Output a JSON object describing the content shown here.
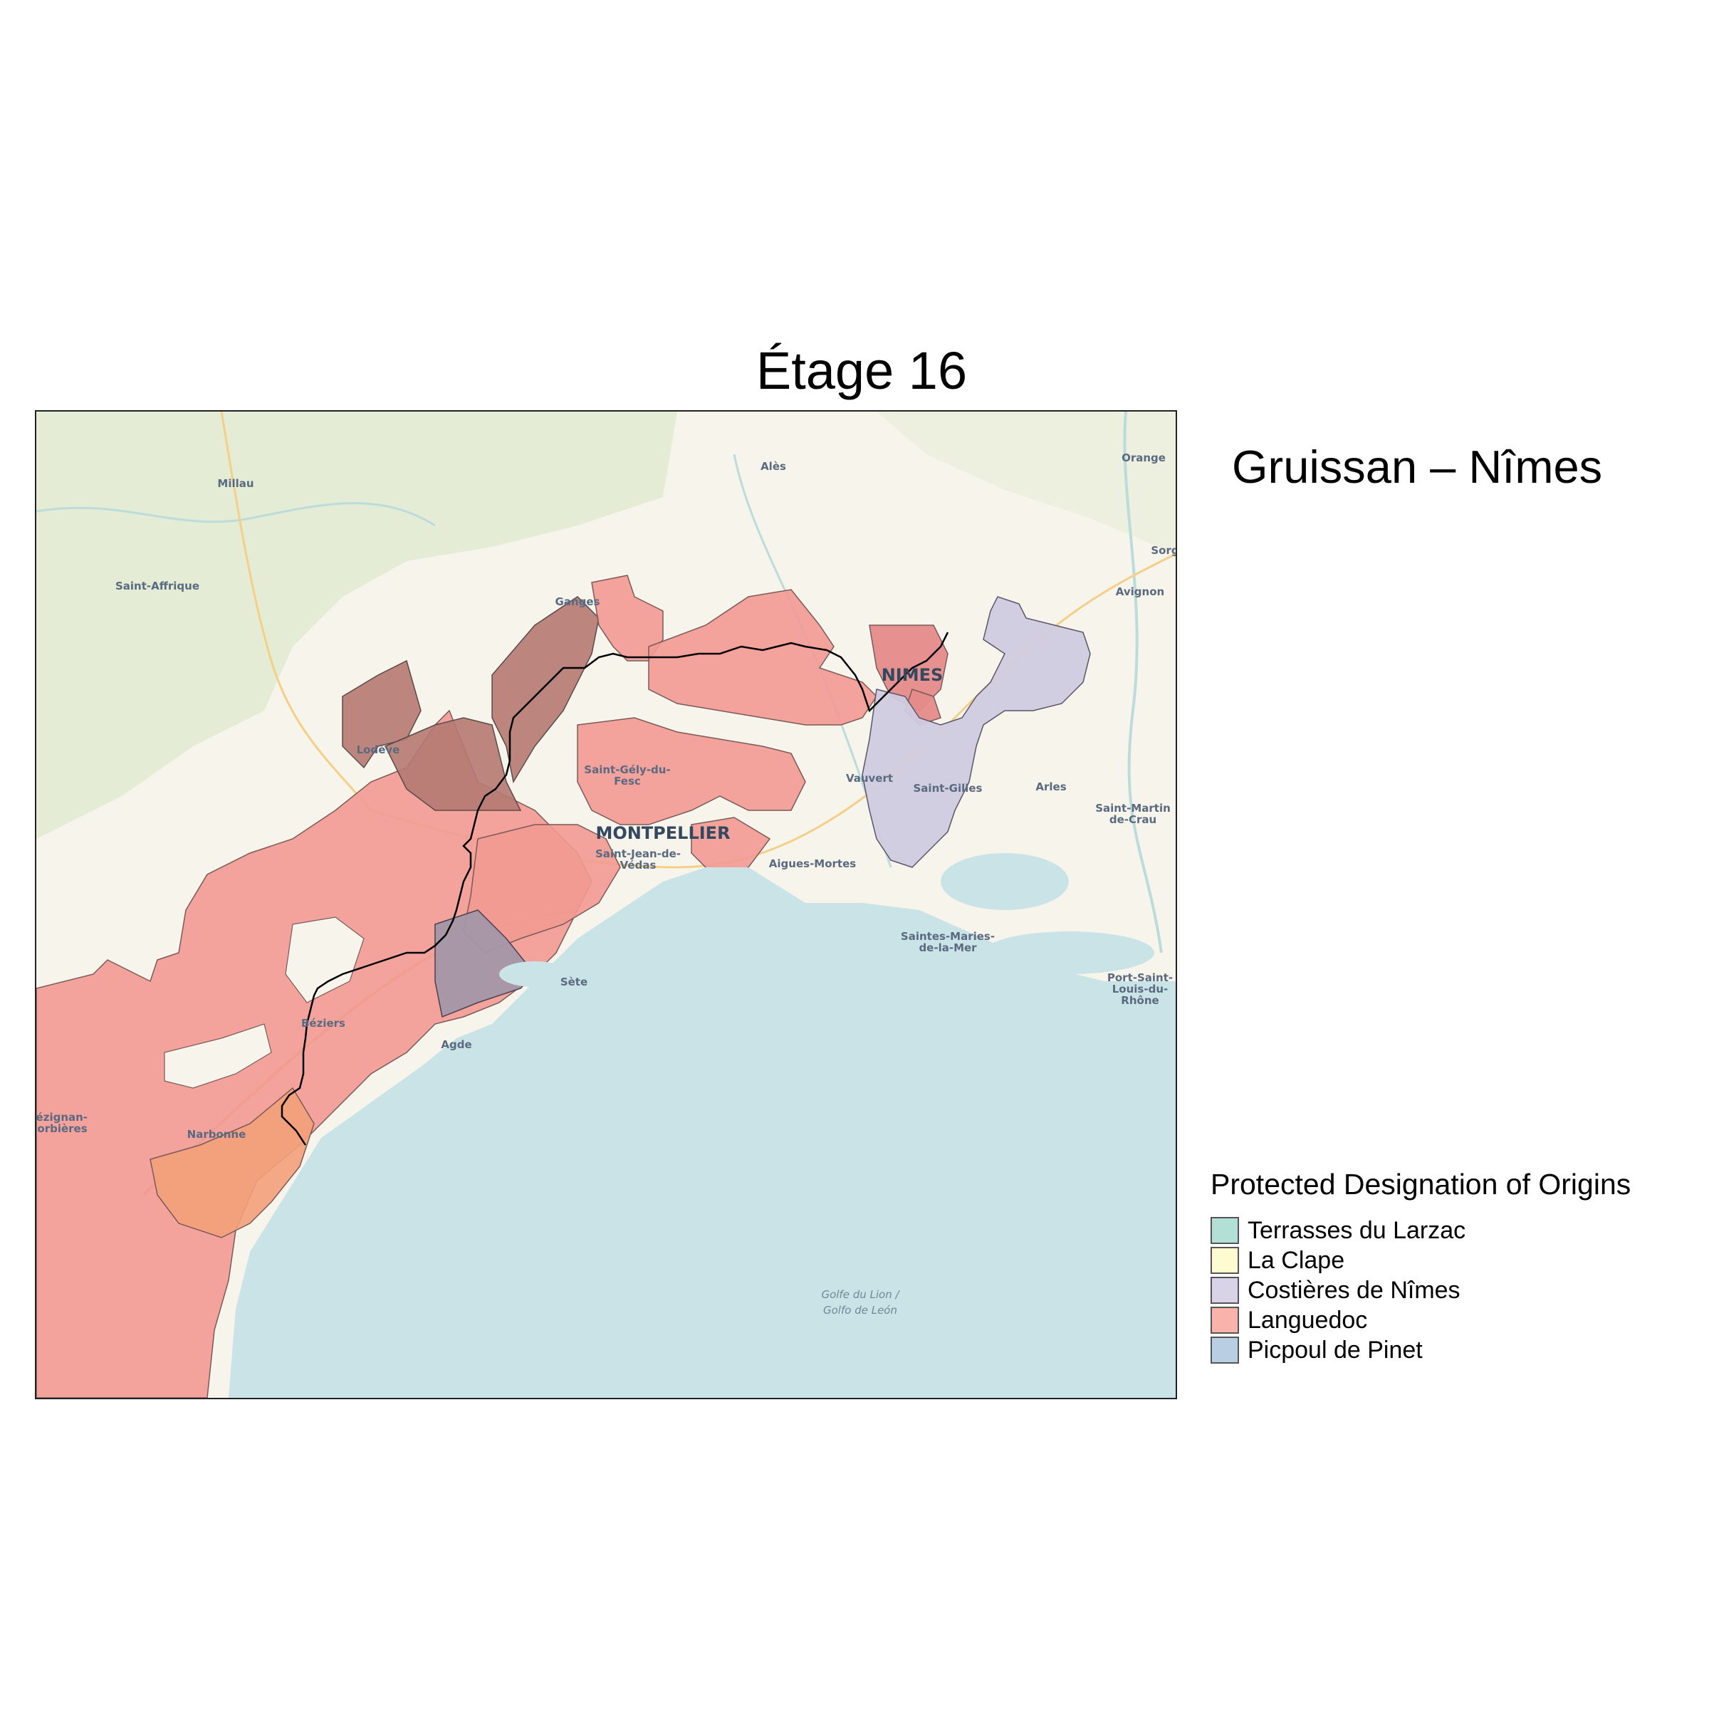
{
  "title": "Étage 16",
  "subtitle": "Gruissan – Nîmes",
  "legend": {
    "title": "Protected Designation of Origins",
    "items": [
      {
        "label": "Terrasses du Larzac",
        "color": "#b3e0d6"
      },
      {
        "label": "La Clape",
        "color": "#fffbd0"
      },
      {
        "label": "Costières de Nîmes",
        "color": "#d8d3e6"
      },
      {
        "label": "Languedoc",
        "color": "#f9b3ab"
      },
      {
        "label": "Picpoul de Pinet",
        "color": "#b9cde3"
      }
    ]
  },
  "map": {
    "colors": {
      "land": "#f7f4ec",
      "forest": "#e4ecd5",
      "sea": "#cae3e6",
      "route": "#000000",
      "languedoc": "#f29a92",
      "languedoc_dark": "#b57a72",
      "costieres": "#d0cbe0",
      "picpoul": "#a397a8",
      "clape": "#f3a07a"
    },
    "places": [
      {
        "name": "Millau"
      },
      {
        "name": "Alès"
      },
      {
        "name": "Orange"
      },
      {
        "name": "Saint-Affrique"
      },
      {
        "name": "Ganges"
      },
      {
        "name": "Sorg"
      },
      {
        "name": "Avignon"
      },
      {
        "name": "NIMES"
      },
      {
        "name": "Lodève"
      },
      {
        "name": "Saint-Gély-du-"
      },
      {
        "name": "Fesc"
      },
      {
        "name": "Vauvert"
      },
      {
        "name": "Saint-Gilles"
      },
      {
        "name": "Arles"
      },
      {
        "name": "Saint-Martin"
      },
      {
        "name": "de-Crau"
      },
      {
        "name": "MONTPELLIER"
      },
      {
        "name": "Saint-Jean-de-"
      },
      {
        "name": "Védas"
      },
      {
        "name": "Aigues-Mortes"
      },
      {
        "name": "Saintes-Maries-"
      },
      {
        "name": "de-la-Mer"
      },
      {
        "name": "Sète"
      },
      {
        "name": "Port-Saint-"
      },
      {
        "name": "Louis-du-"
      },
      {
        "name": "Rhône"
      },
      {
        "name": "Béziers"
      },
      {
        "name": "Agde"
      },
      {
        "name": "Lézignan-"
      },
      {
        "name": "Corbières"
      },
      {
        "name": "Narbonne"
      }
    ],
    "sea_labels": [
      "Golfe du Lion /",
      "Golfo de León"
    ]
  }
}
